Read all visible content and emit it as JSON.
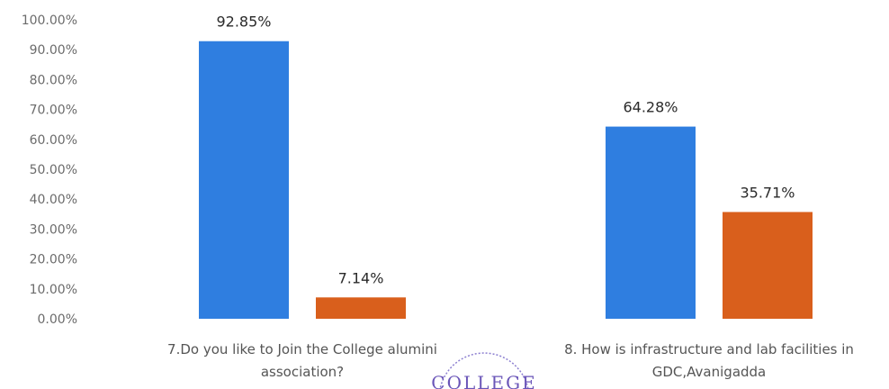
{
  "chart_data": {
    "type": "bar",
    "categories": [
      [
        "7.Do you like to Join the College alumini",
        "association?"
      ],
      [
        "8. How is infrastructure and lab facilities in",
        "GDC,Avanigadda"
      ]
    ],
    "series": [
      {
        "values": [
          92.85,
          64.28
        ],
        "labels": [
          "92.85%",
          "64.28%"
        ],
        "color": "#2f7ee0"
      },
      {
        "values": [
          7.14,
          35.71
        ],
        "labels": [
          "7.14%",
          "35.71%"
        ],
        "color": "#d95f1c"
      }
    ],
    "yticks": [
      "0.00%",
      "10.00%",
      "20.00%",
      "30.00%",
      "40.00%",
      "50.00%",
      "60.00%",
      "70.00%",
      "80.00%",
      "90.00%",
      "100.00%"
    ],
    "ylim": [
      0,
      100
    ],
    "grid": false,
    "legend": "none"
  },
  "seal": {
    "text": "COLLEGE",
    "color": "#6a55b8"
  }
}
